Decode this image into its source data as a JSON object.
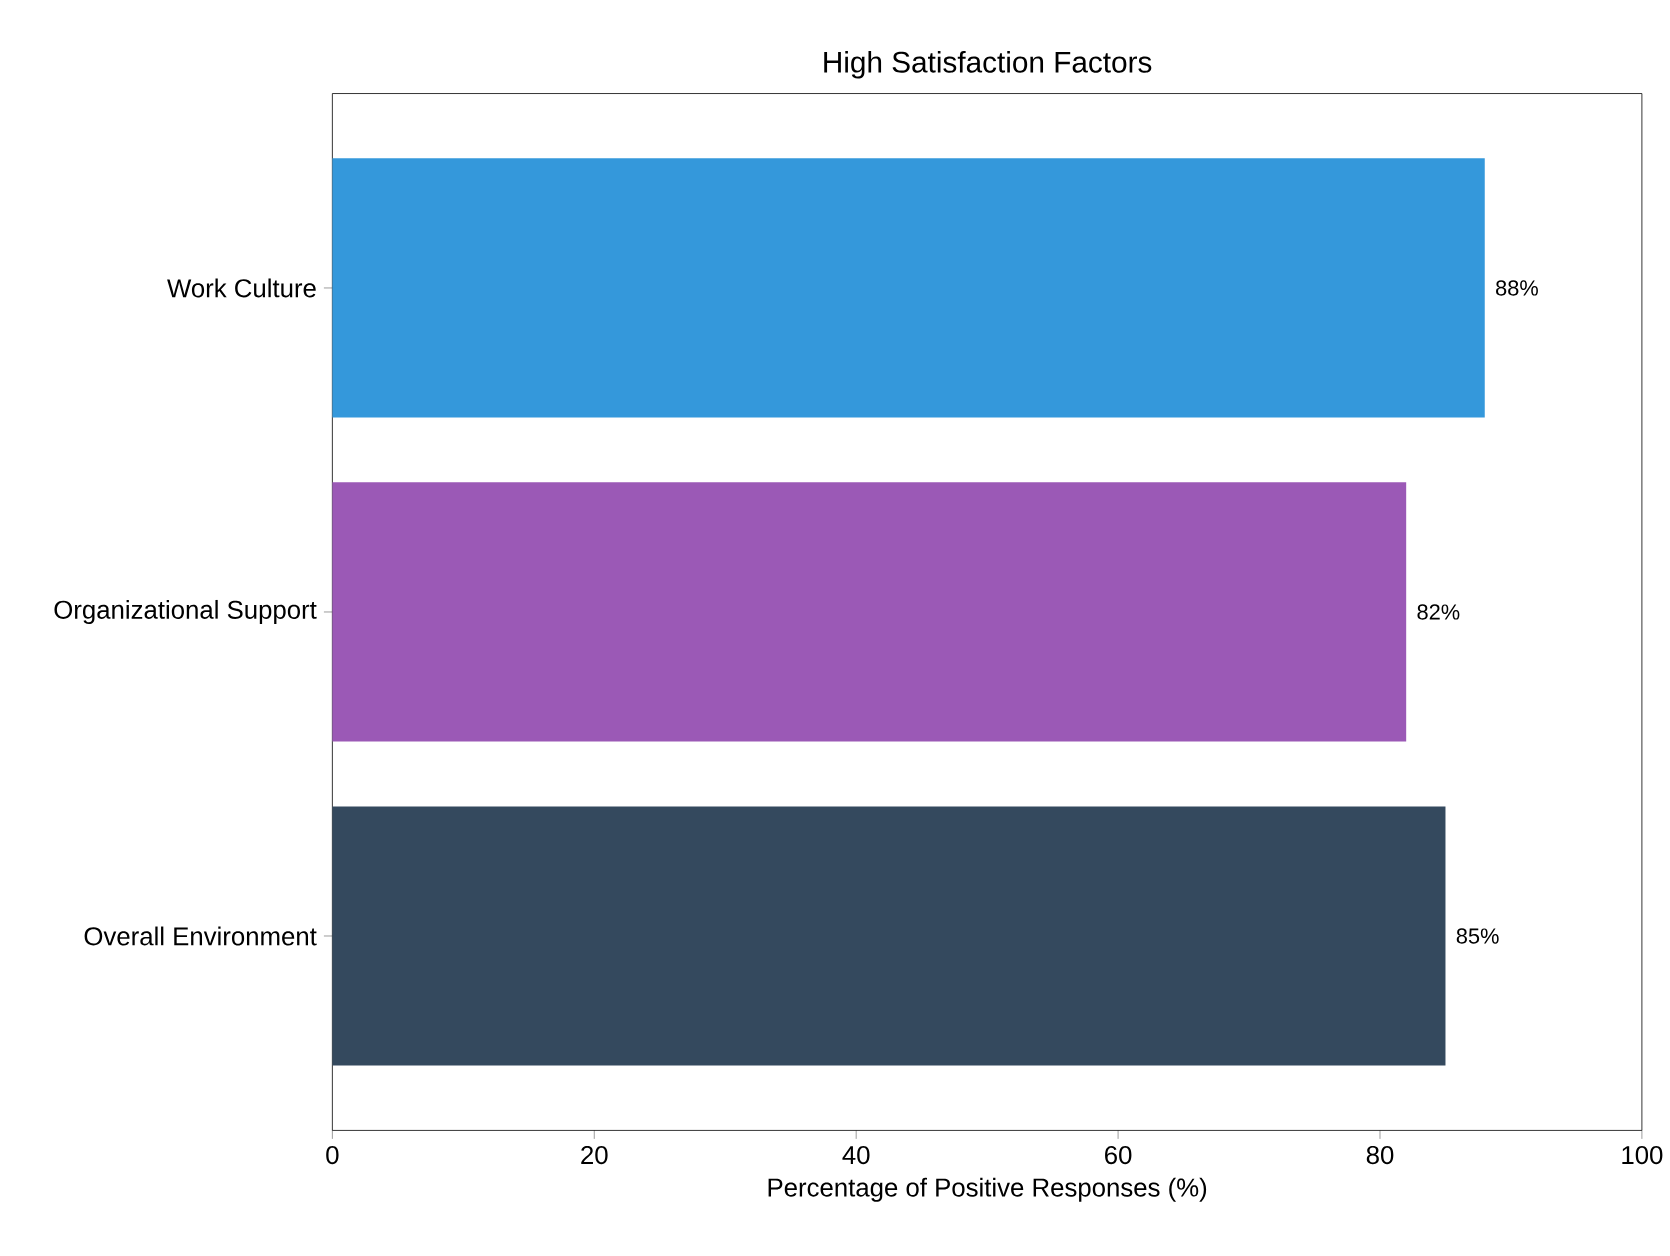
{
  "chart_data": {
    "type": "bar",
    "orientation": "horizontal",
    "title": "High Satisfaction Factors",
    "xlabel": "Percentage of Positive Responses (%)",
    "categories": [
      "Work Culture",
      "Organizational Support",
      "Overall Environment"
    ],
    "values": [
      88,
      82,
      85
    ],
    "colors": [
      "#3498db",
      "#9b59b6",
      "#34495e"
    ],
    "value_labels": [
      "88%",
      "82%",
      "85%"
    ],
    "xlim": [
      0,
      100
    ],
    "xticks": [
      0,
      20,
      40,
      60,
      80,
      100
    ],
    "grid": false
  }
}
